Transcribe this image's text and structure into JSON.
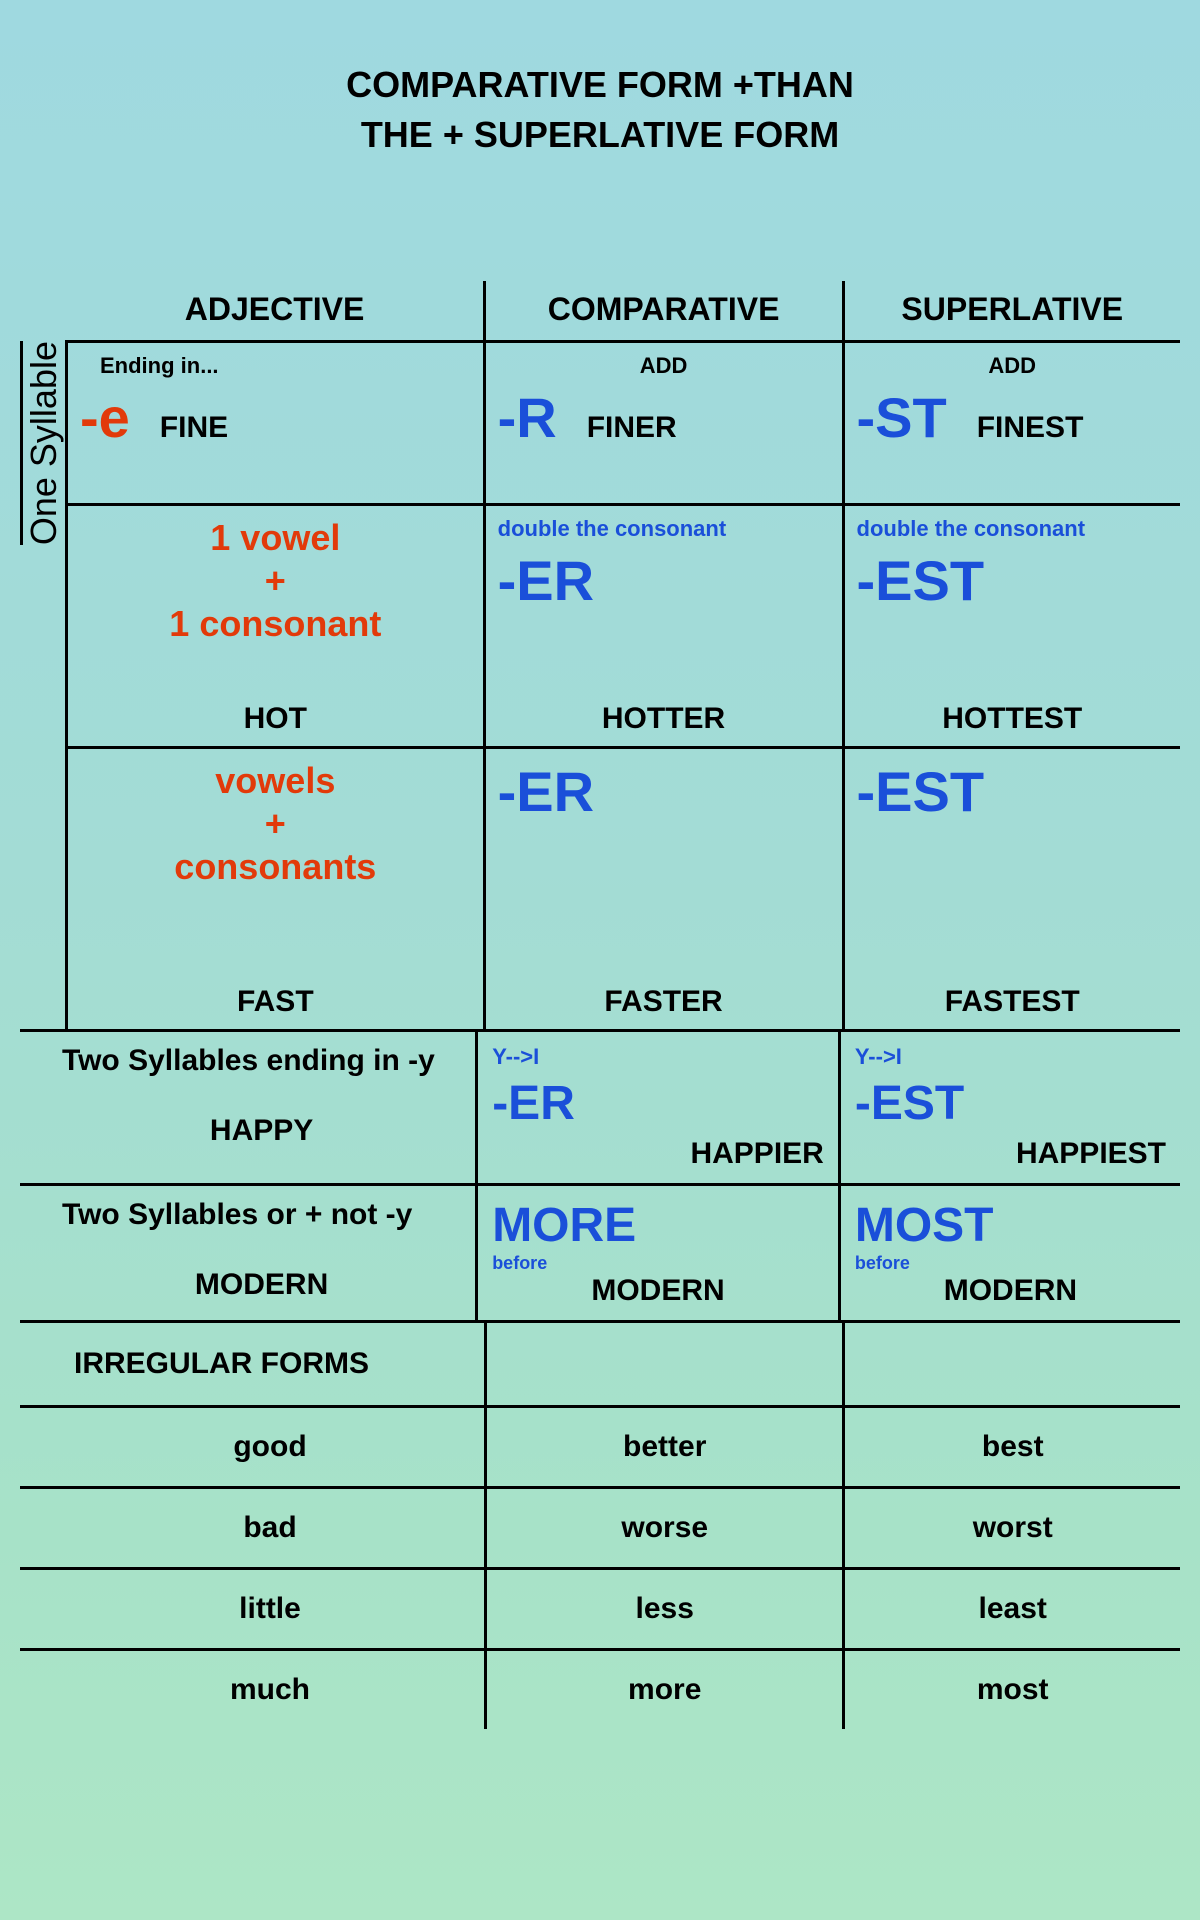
{
  "title_line1": "COMPARATIVE FORM +THAN",
  "title_line2": "THE + SUPERLATIVE FORM",
  "headers": {
    "adj": "ADJECTIVE",
    "comp": "COMPARATIVE",
    "sup": "SUPERLATIVE"
  },
  "side_label": "One Syllable",
  "row1": {
    "adj_note": "Ending in...",
    "adj_suffix": "-e",
    "adj_ex": "FINE",
    "comp_note": "ADD",
    "comp_suffix": "-R",
    "comp_ex": "FINER",
    "sup_note": "ADD",
    "sup_suffix": "-ST",
    "sup_ex": "FINEST"
  },
  "row2": {
    "adj_rule_l1": "1 vowel",
    "adj_rule_plus": "+",
    "adj_rule_l2": "1 consonant",
    "adj_ex": "HOT",
    "comp_note": "double the consonant",
    "comp_suffix": "-ER",
    "comp_ex": "HOTTER",
    "sup_note": "double the consonant",
    "sup_suffix": "-EST",
    "sup_ex": "HOTTEST"
  },
  "row3": {
    "adj_rule_l1": "vowels",
    "adj_rule_plus": "+",
    "adj_rule_l2": "consonants",
    "adj_ex": "FAST",
    "comp_suffix": "-ER",
    "comp_ex": "FASTER",
    "sup_suffix": "-EST",
    "sup_ex": "FASTEST"
  },
  "row4": {
    "adj_head": "Two Syllables ending in -y",
    "adj_ex": "HAPPY",
    "comp_note": "Y-->I",
    "comp_suffix": "-ER",
    "comp_ex": "HAPPIER",
    "sup_note": "Y-->I",
    "sup_suffix": "-EST",
    "sup_ex": "HAPPIEST"
  },
  "row5": {
    "adj_head": "Two Syllables or + not -y",
    "adj_ex": "MODERN",
    "comp_word": "MORE",
    "comp_note": "before",
    "comp_ex": "MODERN",
    "sup_word": "MOST",
    "sup_note": "before",
    "sup_ex": "MODERN"
  },
  "irregular_header": "IRREGULAR FORMS",
  "irregular": [
    {
      "adj": "good",
      "comp": "better",
      "sup": "best"
    },
    {
      "adj": "bad",
      "comp": "worse",
      "sup": "worst"
    },
    {
      "adj": "little",
      "comp": "less",
      "sup": "least"
    },
    {
      "adj": "much",
      "comp": "more",
      "sup": "most"
    }
  ],
  "colors": {
    "red": "#e23a0a",
    "blue": "#1a4fd9",
    "black": "#000000"
  }
}
